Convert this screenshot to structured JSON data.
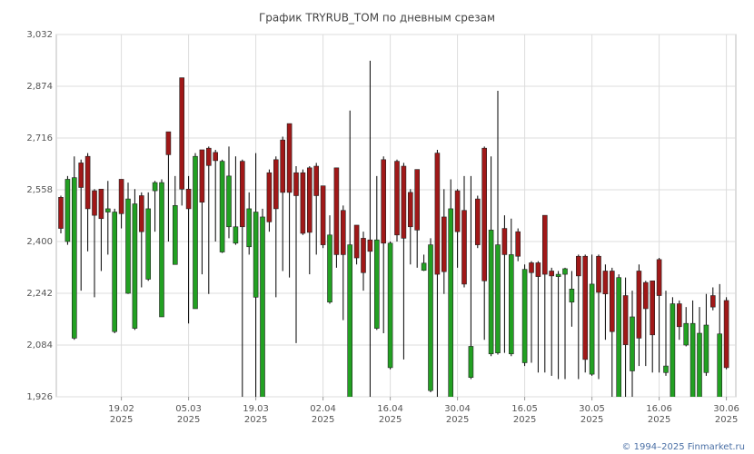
{
  "chart_data": {
    "type": "candlestick",
    "title": "График TRYRUB_TOM по дневным срезам",
    "footer": "© 1994–2025 Finmarket.ru",
    "categories": [
      null,
      null,
      null,
      null,
      null,
      null,
      null,
      null,
      null,
      [
        "19.02",
        "2025"
      ],
      null,
      null,
      null,
      null,
      null,
      null,
      null,
      null,
      null,
      [
        "05.03",
        "2025"
      ],
      null,
      null,
      null,
      null,
      null,
      null,
      null,
      null,
      null,
      [
        "19.03",
        "2025"
      ],
      null,
      null,
      null,
      null,
      null,
      null,
      null,
      null,
      null,
      [
        "02.04",
        "2025"
      ],
      null,
      null,
      null,
      null,
      null,
      null,
      null,
      null,
      null,
      [
        "16.04",
        "2025"
      ],
      null,
      null,
      null,
      null,
      null,
      null,
      null,
      null,
      null,
      [
        "30.04",
        "2025"
      ],
      null,
      null,
      null,
      null,
      null,
      null,
      null,
      null,
      null,
      [
        "16.05",
        "2025"
      ],
      null,
      null,
      null,
      null,
      null,
      null,
      null,
      null,
      null,
      [
        "30.05",
        "2025"
      ],
      null,
      null,
      null,
      null,
      null,
      null,
      null,
      null,
      null,
      [
        "16.06",
        "2025"
      ],
      null,
      null,
      null,
      null,
      null,
      null,
      null,
      null,
      null,
      [
        "30.06",
        "2025"
      ]
    ],
    "open": [
      2.535,
      2.4,
      2.105,
      2.64,
      2.66,
      2.555,
      2.56,
      2.49,
      2.125,
      2.59,
      2.242,
      2.135,
      2.54,
      2.285,
      2.555,
      2.17,
      2.735,
      2.33,
      2.9,
      2.56,
      2.195,
      2.68,
      2.685,
      2.672,
      2.368,
      2.445,
      2.395,
      2.645,
      2.384,
      2.23,
      1.9,
      2.61,
      2.65,
      2.71,
      2.76,
      2.61,
      2.61,
      2.625,
      2.63,
      2.57,
      2.215,
      2.625,
      2.495,
      1.9,
      2.45,
      2.41,
      2.405,
      2.135,
      2.65,
      2.015,
      2.645,
      2.63,
      2.55,
      2.62,
      2.312,
      1.945,
      2.67,
      2.475,
      1.9,
      2.555,
      2.495,
      1.985,
      2.53,
      2.685,
      2.057,
      2.06,
      2.44,
      2.057,
      2.43,
      2.03,
      2.335,
      2.335,
      2.48,
      2.31,
      2.293,
      2.3,
      2.215,
      2.355,
      2.355,
      1.995,
      2.355,
      2.31,
      2.31,
      1.9,
      2.235,
      2.005,
      2.31,
      2.275,
      2.28,
      2.345,
      2.0,
      1.9,
      2.21,
      2.084,
      1.9,
      1.9,
      2.0,
      2.235,
      1.9,
      2.22
    ],
    "high": [
      2.54,
      2.6,
      2.66,
      2.65,
      2.67,
      2.56,
      2.56,
      2.585,
      2.5,
      2.59,
      2.58,
      2.56,
      2.55,
      2.55,
      2.585,
      2.59,
      2.735,
      2.6,
      2.9,
      2.6,
      2.67,
      2.68,
      2.69,
      2.68,
      2.65,
      2.69,
      2.66,
      2.65,
      2.55,
      2.67,
      2.5,
      2.62,
      2.66,
      2.72,
      2.76,
      2.63,
      2.62,
      2.63,
      2.64,
      2.57,
      2.48,
      2.625,
      2.51,
      2.8,
      2.45,
      2.43,
      2.952,
      2.6,
      2.66,
      2.4,
      2.65,
      2.64,
      2.56,
      2.62,
      2.36,
      2.41,
      2.68,
      2.56,
      2.59,
      2.56,
      2.6,
      2.6,
      2.54,
      2.69,
      2.66,
      2.86,
      2.48,
      2.47,
      2.44,
      2.33,
      2.34,
      2.34,
      2.48,
      2.32,
      2.31,
      2.32,
      2.31,
      2.36,
      2.36,
      2.36,
      2.36,
      2.33,
      2.32,
      2.3,
      2.29,
      2.25,
      2.33,
      2.28,
      2.28,
      2.35,
      2.25,
      2.23,
      2.22,
      2.2,
      2.22,
      2.2,
      2.24,
      2.26,
      2.27,
      2.23
    ],
    "low": [
      2.425,
      2.39,
      2.1,
      2.25,
      2.37,
      2.23,
      2.31,
      2.36,
      2.12,
      2.44,
      2.24,
      2.13,
      2.26,
      2.28,
      2.43,
      2.17,
      2.4,
      2.33,
      2.51,
      2.15,
      2.195,
      2.3,
      2.24,
      2.4,
      2.365,
      2.41,
      2.39,
      1.9,
      2.36,
      1.92,
      1.88,
      2.43,
      2.23,
      2.31,
      2.29,
      2.09,
      2.42,
      2.3,
      2.36,
      2.38,
      2.21,
      2.32,
      2.16,
      1.88,
      2.33,
      2.25,
      1.9,
      2.13,
      2.12,
      2.01,
      2.4,
      2.04,
      2.33,
      2.32,
      2.31,
      1.94,
      1.9,
      2.24,
      1.88,
      2.32,
      2.26,
      1.98,
      2.38,
      2.1,
      2.05,
      2.055,
      2.06,
      2.05,
      2.34,
      2.02,
      2.03,
      2.0,
      2.0,
      1.99,
      1.98,
      1.98,
      2.14,
      1.98,
      2.0,
      1.99,
      1.98,
      2.1,
      1.9,
      1.88,
      1.9,
      1.9,
      2.02,
      2.02,
      2.0,
      2.0,
      1.99,
      1.88,
      2.1,
      2.08,
      1.88,
      1.88,
      1.99,
      2.19,
      1.88,
      2.01
    ],
    "close": [
      2.44,
      2.59,
      2.595,
      2.565,
      2.5,
      2.48,
      2.47,
      2.5,
      2.49,
      2.485,
      2.53,
      2.515,
      2.43,
      2.5,
      2.58,
      2.58,
      2.665,
      2.51,
      2.56,
      2.5,
      2.66,
      2.52,
      2.632,
      2.647,
      2.645,
      2.6,
      2.445,
      2.445,
      2.5,
      2.49,
      2.475,
      2.46,
      2.5,
      2.55,
      2.55,
      2.54,
      2.425,
      2.428,
      2.54,
      2.39,
      2.42,
      2.36,
      2.36,
      2.39,
      2.35,
      2.305,
      2.37,
      2.405,
      2.395,
      2.395,
      2.42,
      2.41,
      2.445,
      2.435,
      2.334,
      2.39,
      2.3,
      2.308,
      2.5,
      2.43,
      2.27,
      2.08,
      2.39,
      2.28,
      2.435,
      2.39,
      2.36,
      2.36,
      2.355,
      2.315,
      2.305,
      2.293,
      2.3,
      2.295,
      2.3,
      2.317,
      2.255,
      2.295,
      2.04,
      2.27,
      2.245,
      2.24,
      2.125,
      2.29,
      2.085,
      2.17,
      2.105,
      2.195,
      2.115,
      2.235,
      2.02,
      2.21,
      2.14,
      2.15,
      2.15,
      2.12,
      2.145,
      2.2,
      2.118,
      2.015
    ],
    "up_color": "#22a022",
    "down_color": "#a01818",
    "ylim": [
      1.926,
      3.032
    ],
    "yticks": [
      {
        "value": 1.926,
        "label": "1,926"
      },
      {
        "value": 2.084,
        "label": "2,084"
      },
      {
        "value": 2.242,
        "label": "2,242"
      },
      {
        "value": 2.4,
        "label": "2,400"
      },
      {
        "value": 2.558,
        "label": "2,558"
      },
      {
        "value": 2.716,
        "label": "2,716"
      },
      {
        "value": 2.874,
        "label": "2,874"
      },
      {
        "value": 3.032,
        "label": "3,032"
      }
    ],
    "grid": true
  }
}
